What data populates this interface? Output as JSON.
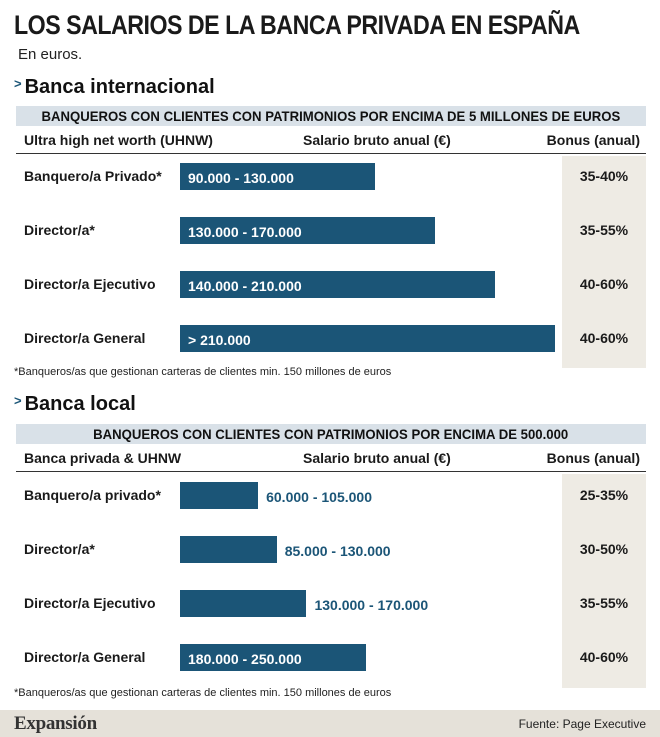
{
  "title": "LOS SALARIOS DE LA BANCA PRIVADA EN ESPAÑA",
  "subtitle": "En euros.",
  "chart_data": [
    {
      "type": "bar",
      "section": "Banca internacional",
      "banner": "BANQUEROS CON CLIENTES CON PATRIMONIOS POR ENCIMA DE 5 MILLONES DE EUROS",
      "column_headers": [
        "Ultra high net worth (UHNW)",
        "Salario bruto anual (€)",
        "Bonus (anual)"
      ],
      "categories": [
        "Banquero/a Privado*",
        "Director/a*",
        "Director/a Ejecutivo",
        "Director/a General"
      ],
      "ranges": [
        [
          90000,
          130000
        ],
        [
          130000,
          170000
        ],
        [
          140000,
          210000
        ],
        [
          210000,
          null
        ]
      ],
      "range_labels": [
        "90.000 - 130.000",
        "130.000 - 170.000",
        "140.000 - 210.000",
        "> 210.000"
      ],
      "bonus": [
        "35-40%",
        "35-55%",
        "40-60%",
        "40-60%"
      ],
      "footnote": "*Banqueros/as que gestionan carteras de clientes min. 150 millones de euros"
    },
    {
      "type": "bar",
      "section": "Banca local",
      "banner": "BANQUEROS CON CLIENTES CON PATRIMONIOS POR ENCIMA DE 500.000",
      "column_headers": [
        "Banca privada & UHNW",
        "Salario bruto anual (€)",
        "Bonus (anual)"
      ],
      "categories": [
        "Banquero/a privado*",
        "Director/a*",
        "Director/a Ejecutivo",
        "Director/a General"
      ],
      "ranges": [
        [
          60000,
          105000
        ],
        [
          85000,
          130000
        ],
        [
          130000,
          170000
        ],
        [
          180000,
          250000
        ]
      ],
      "range_labels": [
        "60.000 - 105.000",
        "85.000 - 130.000",
        "130.000 - 170.000",
        "180.000 - 250.000"
      ],
      "bonus": [
        "25-35%",
        "30-50%",
        "35-55%",
        "40-60%"
      ],
      "footnote": "*Banqueros/as que gestionan carteras de clientes min. 150 millones de euros"
    }
  ],
  "brand": "Expansión",
  "source": "Fuente: Page Executive",
  "colors": {
    "bar": "#1b5577",
    "banner": "#d9e1e8",
    "bonus_bg": "#eeebe4"
  }
}
